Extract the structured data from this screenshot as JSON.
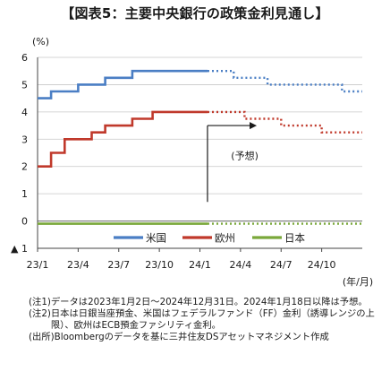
{
  "page": {
    "title": "【図表5：主要中央銀行の政策金利見通し】"
  },
  "chart_data": {
    "type": "line",
    "title": "【図表5：主要中央銀行の政策金利見通し】",
    "y_unit_label": "(%)",
    "x_unit_label": "(年/月)",
    "ylim": [
      -1,
      6
    ],
    "y_ticks": [
      6,
      5,
      4,
      3,
      2,
      1,
      0,
      -1
    ],
    "y_tick_labels": [
      "6",
      "5",
      "4",
      "3",
      "2",
      "1",
      "0",
      "▲ 1"
    ],
    "x_range": [
      0,
      24
    ],
    "x_ticks": [
      0,
      3,
      6,
      9,
      12,
      15,
      18,
      21
    ],
    "x_tick_labels": [
      "23/1",
      "23/4",
      "23/7",
      "23/10",
      "24/1",
      "24/4",
      "24/7",
      "24/10"
    ],
    "forecast_start": 12.56,
    "grid": {
      "horizontal": true,
      "vertical": false
    },
    "colors": {
      "us": "#4a7ec4",
      "eu": "#c0392b",
      "jp": "#7aa83a",
      "axis": "#444444",
      "grid": "#c8c8c8"
    },
    "series": [
      {
        "name": "米国",
        "color": "#4a7ec4",
        "actual": [
          [
            0,
            4.5
          ],
          [
            1,
            4.5
          ],
          [
            1,
            4.75
          ],
          [
            3,
            4.75
          ],
          [
            3,
            5.0
          ],
          [
            5,
            5.0
          ],
          [
            5,
            5.25
          ],
          [
            7,
            5.25
          ],
          [
            7,
            5.5
          ],
          [
            12.56,
            5.5
          ]
        ],
        "forecast": [
          [
            12.56,
            5.5
          ],
          [
            14.5,
            5.5
          ],
          [
            14.5,
            5.25
          ],
          [
            17,
            5.25
          ],
          [
            17,
            5.0
          ],
          [
            19,
            5.0
          ],
          [
            19,
            5.0
          ],
          [
            22.5,
            5.0
          ],
          [
            22.5,
            4.75
          ],
          [
            24,
            4.75
          ]
        ]
      },
      {
        "name": "欧州",
        "color": "#c0392b",
        "actual": [
          [
            0,
            2.0
          ],
          [
            1,
            2.0
          ],
          [
            1,
            2.5
          ],
          [
            2,
            2.5
          ],
          [
            2,
            3.0
          ],
          [
            4,
            3.0
          ],
          [
            4,
            3.25
          ],
          [
            5,
            3.25
          ],
          [
            5,
            3.5
          ],
          [
            7,
            3.5
          ],
          [
            7,
            3.75
          ],
          [
            8.5,
            3.75
          ],
          [
            8.5,
            4.0
          ],
          [
            12.56,
            4.0
          ]
        ],
        "forecast": [
          [
            12.56,
            4.0
          ],
          [
            15.3,
            4.0
          ],
          [
            15.3,
            3.75
          ],
          [
            18,
            3.75
          ],
          [
            18,
            3.5
          ],
          [
            21,
            3.5
          ],
          [
            21,
            3.25
          ],
          [
            24,
            3.25
          ]
        ]
      },
      {
        "name": "日本",
        "color": "#7aa83a",
        "actual": [
          [
            0,
            -0.1
          ],
          [
            12.56,
            -0.1
          ]
        ],
        "forecast": [
          [
            12.56,
            -0.1
          ],
          [
            24,
            -0.1
          ]
        ]
      }
    ],
    "annotation": {
      "text": "(予想)",
      "x": 14.3,
      "y": 2.4
    },
    "legend": {
      "position": "bottom-center",
      "entries": [
        "米国",
        "欧州",
        "日本"
      ]
    }
  },
  "notes": [
    {
      "label": "(注1)",
      "text": "データは2023年1月2日～2024年12月31日。2024年1月18日以降は予想。"
    },
    {
      "label": "(注2)",
      "text": "日本は日銀当座預金、米国はフェデラルファンド（FF）金利（誘導レンジの上限）、欧州はECB預金ファシリティ金利。"
    },
    {
      "label": "(出所)",
      "text": "Bloombergのデータを基に三井住友DSアセットマネジメント作成"
    }
  ]
}
